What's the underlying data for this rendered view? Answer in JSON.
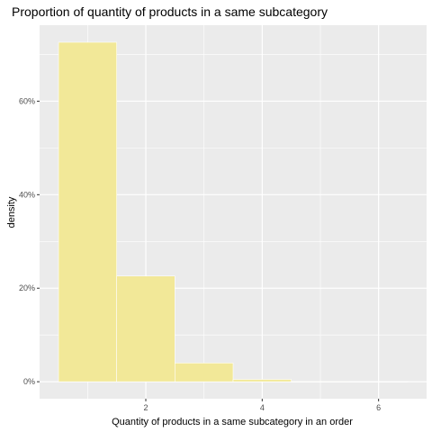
{
  "chart_data": {
    "type": "bar",
    "title": "Proportion of quantity of products in a same subcategory",
    "xlabel": "Quantity of products in a same subcategory in an order",
    "ylabel": "density",
    "bins": [
      {
        "x_start": 0.5,
        "x_end": 1.5,
        "value": 0.726
      },
      {
        "x_start": 1.5,
        "x_end": 2.5,
        "value": 0.226
      },
      {
        "x_start": 2.5,
        "x_end": 3.5,
        "value": 0.04
      },
      {
        "x_start": 3.5,
        "x_end": 4.5,
        "value": 0.005
      },
      {
        "x_start": 4.5,
        "x_end": 5.5,
        "value": 0.0005
      },
      {
        "x_start": 5.5,
        "x_end": 6.5,
        "value": 0.0002
      }
    ],
    "x_ticks": [
      {
        "value": 2,
        "label": "2"
      },
      {
        "value": 4,
        "label": "4"
      },
      {
        "value": 6,
        "label": "6"
      }
    ],
    "y_ticks": [
      {
        "value": 0,
        "label": "0%"
      },
      {
        "value": 0.2,
        "label": "20%"
      },
      {
        "value": 0.4,
        "label": "40%"
      },
      {
        "value": 0.6,
        "label": "60%"
      }
    ],
    "xlim": [
      0.175,
      6.825
    ],
    "ylim": [
      -0.0363,
      0.7625
    ],
    "grid": true,
    "colors": {
      "panel": "#ebebeb",
      "grid": "#ffffff",
      "bar_fill": "#f2e898",
      "bar_stroke": "#ffffff"
    }
  }
}
